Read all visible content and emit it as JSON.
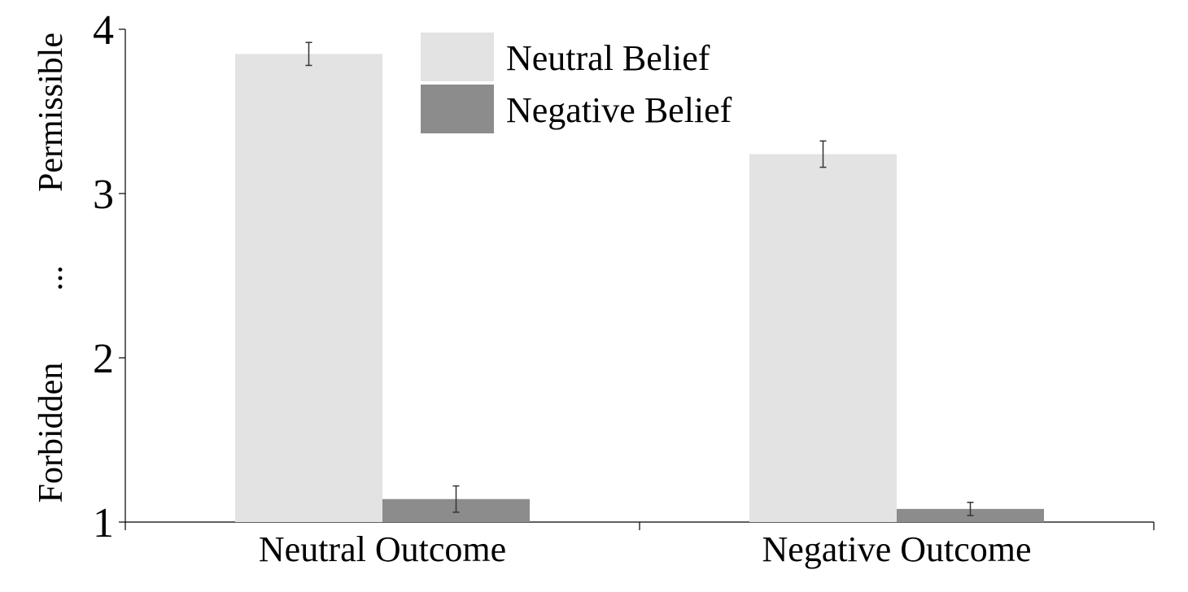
{
  "chart_data": {
    "type": "bar",
    "categories": [
      "Neutral Outcome",
      "Negative Outcome"
    ],
    "series": [
      {
        "name": "Neutral Belief",
        "color": "#e3e3e3",
        "values": [
          3.85,
          3.24
        ],
        "errors": [
          0.07,
          0.08
        ]
      },
      {
        "name": "Negative Belief",
        "color": "#8c8c8c",
        "values": [
          1.14,
          1.08
        ],
        "errors": [
          0.08,
          0.04
        ]
      }
    ],
    "ylim": [
      1,
      4
    ],
    "yticks": [
      "1",
      "2",
      "3",
      "4"
    ],
    "ylabel_parts": [
      "Forbidden",
      "...",
      "Permissible"
    ],
    "xlabel": "",
    "title": "",
    "legend_position": "top-center",
    "grid": false
  }
}
